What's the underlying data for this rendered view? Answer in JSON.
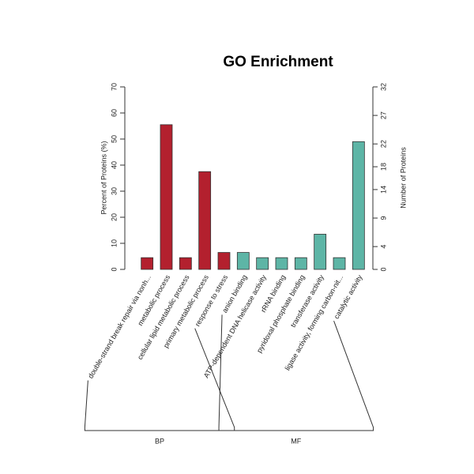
{
  "chart_data": {
    "type": "bar",
    "title": "GO Enrichment",
    "y_label": "Percent of Proteins (%)",
    "y2_label": "Number of Proteins",
    "categories": [
      "double-strand break repair via nonh...",
      "metabolic process",
      "cellular lipid metabolic process",
      "primary metabolic process",
      "response to stress",
      "anion binding",
      "ATP-dependent DNA helicase activity",
      "rRNA binding",
      "pyridoxal phosphate binding",
      "transferase activity",
      "ligase activity, forming carbon-nit...",
      "catalytic activity"
    ],
    "series": [
      {
        "name": "BP",
        "color": "#b3202e",
        "values": [
          4.5,
          55.5,
          4.5,
          37.5,
          6.5,
          null,
          null,
          null,
          null,
          null,
          null,
          null
        ]
      },
      {
        "name": "MF",
        "color": "#5db5a6",
        "values": [
          null,
          null,
          null,
          null,
          null,
          6.5,
          4.5,
          4.5,
          4.5,
          13.5,
          4.5,
          49
        ]
      }
    ],
    "ylim": [
      0,
      70
    ],
    "yticks": [
      0,
      10,
      20,
      30,
      40,
      50,
      60,
      70
    ],
    "y2lim": [
      0,
      32
    ],
    "y2ticks": [
      0,
      4,
      9,
      14,
      18,
      22,
      27,
      32
    ]
  }
}
